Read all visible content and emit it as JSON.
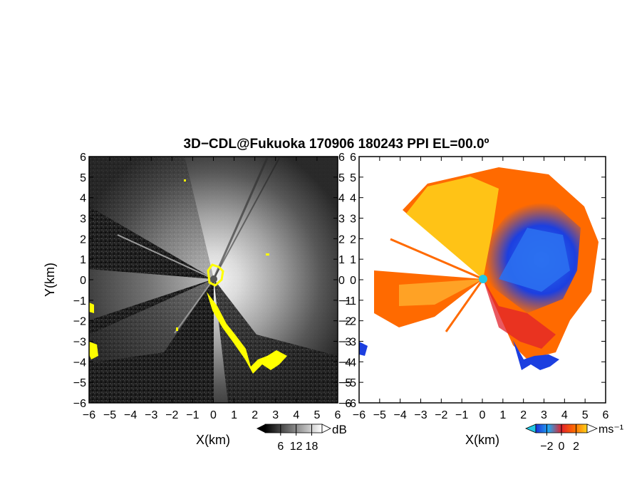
{
  "title": "3D−CDL@Fukuoka 170906 180243 PPI EL=00.0º",
  "chart_data": [
    {
      "type": "heatmap",
      "panel": "reflectivity",
      "xlabel": "X(km)",
      "ylabel": "Y(km)",
      "xlim": [
        -6,
        6
      ],
      "ylim": [
        -6,
        6
      ],
      "x_ticks": [
        "−6",
        "−5",
        "−4",
        "−3",
        "−2",
        "−1",
        "0",
        "1",
        "2",
        "3",
        "4",
        "5",
        "6"
      ],
      "y_ticks": [
        "−6",
        "−5",
        "−4",
        "−3",
        "−2",
        "−1",
        "0",
        "1",
        "2",
        "3",
        "4",
        "5",
        "6"
      ],
      "colorbar": {
        "unit": "dB",
        "tick_labels": [
          "6",
          "12",
          "18"
        ],
        "ticks": [
          6,
          12,
          18
        ],
        "range": [
          0,
          22
        ],
        "colors": [
          "#000000",
          "#ffffff"
        ]
      },
      "highlight_color": "#ffff00",
      "background_color": "#1a1a1a"
    },
    {
      "type": "heatmap",
      "panel": "doppler-velocity",
      "xlabel": "X(km)",
      "xlim": [
        -6,
        6
      ],
      "ylim": [
        -6,
        6
      ],
      "x_ticks": [
        "−6",
        "−5",
        "−4",
        "−3",
        "−2",
        "−1",
        "0",
        "1",
        "2",
        "3",
        "4",
        "5",
        "6"
      ],
      "y_ticks": [
        "−6",
        "−5",
        "−4",
        "−3",
        "−2",
        "−1",
        "0",
        "1",
        "2",
        "3",
        "4",
        "5",
        "6"
      ],
      "colorbar": {
        "unit": "ms⁻¹",
        "tick_labels": [
          "−2",
          "0",
          "2"
        ],
        "ticks": [
          -2,
          0,
          2
        ],
        "range": [
          -3.5,
          3.5
        ],
        "colors": [
          "#1b2fd9",
          "#22a7f0",
          "#ff6a00",
          "#ffd21a"
        ]
      },
      "background_color": "#ffffff"
    }
  ]
}
